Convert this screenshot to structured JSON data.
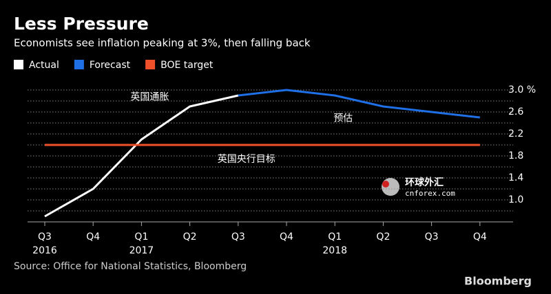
{
  "chart_data": {
    "type": "line",
    "title": "Less Pressure",
    "subtitle": "Economists see inflation peaking at 3%, then falling back",
    "categories": [
      "Q3",
      "Q4",
      "Q1",
      "Q2",
      "Q3",
      "Q4",
      "Q1",
      "Q2",
      "Q3",
      "Q4"
    ],
    "years": [
      "2016",
      null,
      "2017",
      null,
      null,
      null,
      "2018",
      null,
      null,
      null
    ],
    "series": [
      {
        "name": "Actual",
        "color": "#ffffff",
        "values": [
          0.7,
          1.2,
          2.1,
          2.7,
          2.9,
          null,
          null,
          null,
          null,
          null
        ]
      },
      {
        "name": "Forecast",
        "color": "#1f6fe6",
        "values": [
          null,
          null,
          null,
          null,
          2.9,
          3.0,
          2.9,
          2.7,
          2.6,
          2.5
        ]
      },
      {
        "name": "BOE target",
        "color": "#f0502a",
        "values": [
          2.0,
          2.0,
          2.0,
          2.0,
          2.0,
          2.0,
          2.0,
          2.0,
          2.0,
          2.0
        ]
      }
    ],
    "ylim": [
      0.6,
      3.0
    ],
    "yticks": [
      {
        "value": 1,
        "label": "1.0"
      },
      1.4,
      1.8,
      2.2,
      2.6,
      {
        "value": 3,
        "label": "3.0 %"
      }
    ],
    "grid_lines": [
      0.8,
      1.0,
      1.2,
      1.4,
      1.6,
      1.8,
      2.0,
      2.2,
      2.4,
      2.6,
      2.8,
      3.0
    ],
    "annotations": [
      {
        "text": "英国通胀",
        "category": 2,
        "value": 2.87
      },
      {
        "text": "预估",
        "category": 6,
        "value": 2.48
      },
      {
        "text": "英国央行目标",
        "category": 4,
        "value": 1.74
      }
    ],
    "watermark": [
      "环球外汇",
      "cnforex.com"
    ],
    "source": "Source: Office for National Statistics, Bloomberg",
    "brand": "Bloomberg"
  }
}
